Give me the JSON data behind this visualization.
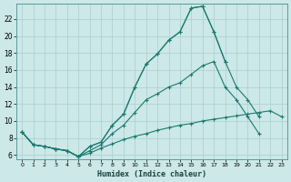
{
  "xlabel": "Humidex (Indice chaleur)",
  "bg_color": "#cce8e8",
  "line_color": "#1a7a6e",
  "grid_color": "#aacece",
  "xlim": [
    -0.5,
    23.5
  ],
  "ylim": [
    5.5,
    23.8
  ],
  "xticks": [
    0,
    1,
    2,
    3,
    4,
    5,
    6,
    7,
    8,
    9,
    10,
    11,
    12,
    13,
    14,
    15,
    16,
    17,
    18,
    19,
    20,
    21,
    22,
    23
  ],
  "yticks": [
    6,
    8,
    10,
    12,
    14,
    16,
    18,
    20,
    22
  ],
  "lines": [
    {
      "x": [
        0,
        1,
        2,
        3,
        4,
        5,
        6,
        7,
        8,
        9,
        10,
        11,
        12,
        13,
        14,
        15,
        16,
        17,
        18
      ],
      "y": [
        8.7,
        7.2,
        7.0,
        6.7,
        6.5,
        5.8,
        7.0,
        7.5,
        9.5,
        10.8,
        14.0,
        16.7,
        17.9,
        19.5,
        20.5,
        23.3,
        23.5,
        20.5,
        17.0
      ]
    },
    {
      "x": [
        0,
        1,
        2,
        3,
        4,
        5,
        6,
        7,
        8,
        9,
        10,
        11,
        12,
        13,
        14,
        15,
        16,
        17,
        18,
        19,
        20,
        21
      ],
      "y": [
        8.7,
        7.2,
        7.0,
        6.7,
        6.5,
        5.8,
        7.0,
        7.5,
        9.5,
        10.8,
        14.0,
        16.7,
        17.9,
        19.5,
        20.5,
        23.3,
        23.5,
        20.5,
        17.0,
        14.0,
        12.5,
        10.5
      ]
    },
    {
      "x": [
        0,
        1,
        2,
        3,
        4,
        5,
        6,
        7,
        8,
        9,
        10,
        11,
        12,
        13,
        14,
        15,
        16,
        17,
        18,
        19,
        20,
        21,
        22,
        23
      ],
      "y": [
        8.7,
        7.2,
        7.0,
        6.7,
        6.5,
        5.8,
        6.2,
        6.8,
        7.3,
        7.8,
        8.2,
        8.5,
        8.9,
        9.2,
        9.5,
        9.7,
        10.0,
        10.2,
        10.4,
        10.6,
        10.8,
        11.0,
        11.2,
        10.5
      ]
    },
    {
      "x": [
        0,
        1,
        2,
        3,
        4,
        5,
        6,
        7,
        8,
        9,
        10,
        11,
        12,
        13,
        14,
        15,
        16,
        17,
        18,
        19,
        20,
        21,
        22,
        23
      ],
      "y": [
        8.7,
        7.2,
        7.0,
        6.7,
        6.5,
        5.8,
        6.5,
        7.2,
        8.5,
        9.5,
        11.0,
        12.5,
        13.2,
        14.0,
        14.5,
        15.5,
        16.5,
        17.0,
        14.0,
        12.5,
        10.5,
        8.5,
        null,
        null
      ]
    }
  ]
}
